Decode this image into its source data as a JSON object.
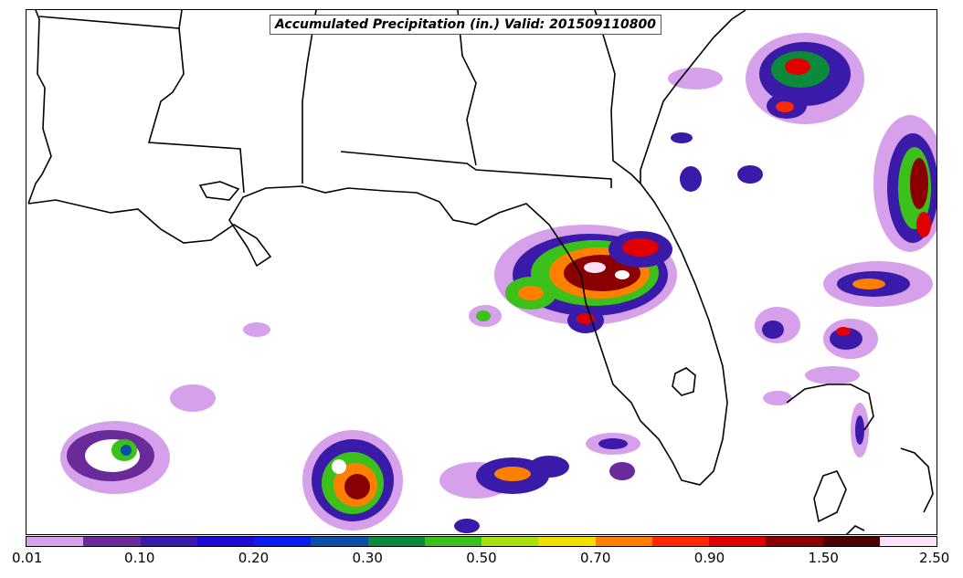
{
  "title": "Accumulated Precipitation (in.) Valid: 201509110800",
  "colorbar": {
    "colors": [
      "#d7a0ea",
      "#6a2a9a",
      "#3a1aa8",
      "#1c0ad6",
      "#0a1cf0",
      "#0a4ea8",
      "#0a8a3a",
      "#3cc01a",
      "#a8e010",
      "#f0e000",
      "#ff8000",
      "#ff2800",
      "#e00000",
      "#8a0000",
      "#4a0000",
      "#fde0fa"
    ],
    "tick_labels": [
      "0.01",
      "0.10",
      "0.20",
      "0.30",
      "0.50",
      "0.70",
      "0.90",
      "1.50",
      "2.50"
    ]
  }
}
